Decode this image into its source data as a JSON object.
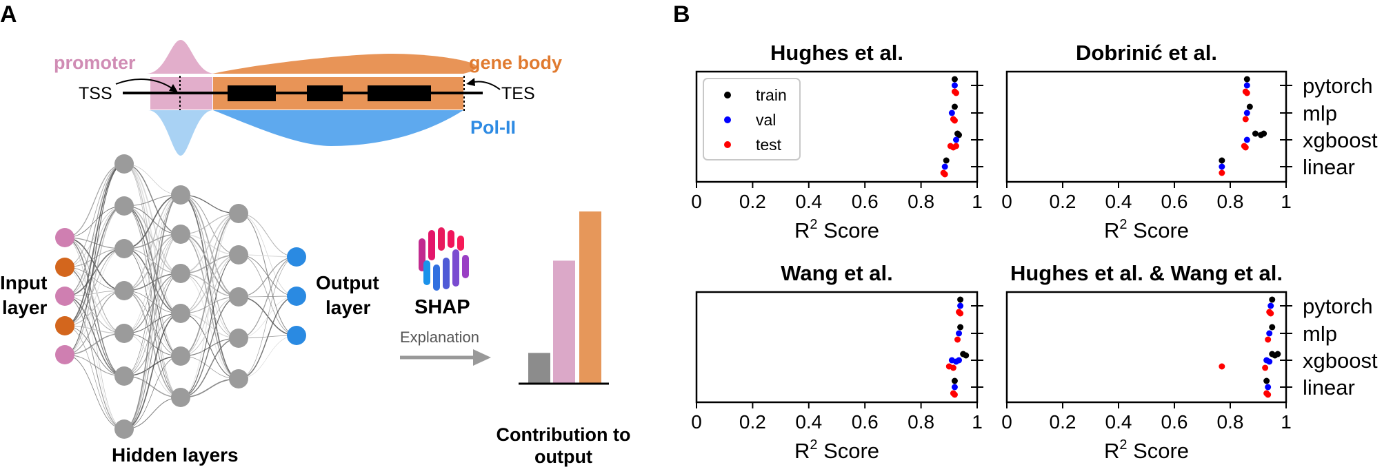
{
  "panel_a": {
    "label": "A",
    "schematic": {
      "promoter": "promoter",
      "gene_body": "gene body",
      "tss": "TSS",
      "tes": "TES",
      "pol2": "Pol-II",
      "colors": {
        "promoter": "#d08cb4",
        "promoter_light": "#e2aecb",
        "gene_body": "#e89457",
        "pol2": "#2e8be3",
        "pol2_light": "#a9d2f4"
      }
    },
    "network": {
      "input_label": "Input layer",
      "input_label_line1": "Input",
      "input_label_line2": "layer",
      "output_label_line1": "Output",
      "output_label_line2": "layer",
      "hidden_label": "Hidden layers",
      "input_colors": [
        "#cf7fb1",
        "#d3661d",
        "#cf7fb1",
        "#d3661d",
        "#cf7fb1"
      ],
      "hidden_color": "#9b9b9b",
      "output_color": "#2a8ae2"
    },
    "shap": {
      "logo_text": "SHAP",
      "arrow_label": "Explanation",
      "contribution_line1": "Contribution to",
      "contribution_line2": "output",
      "contribution_values": [
        0.25,
        1.0,
        1.4
      ],
      "contribution_colors": [
        "#8c8c8c",
        "#dba8c8",
        "#e6975a"
      ]
    }
  },
  "panel_b": {
    "label": "B"
  },
  "chart_data": [
    {
      "type": "scatter",
      "title": "Hughes et al.",
      "xlabel": "R² Score",
      "xlim": [
        0,
        1
      ],
      "xticks": [
        "0",
        "0.2",
        "0.4",
        "0.6",
        "0.8",
        "1"
      ],
      "categories": [
        "pytorch",
        "mlp",
        "xgboost",
        "linear"
      ],
      "show_legend": true,
      "show_category_labels": false,
      "legend": [
        "train",
        "val",
        "test"
      ],
      "series": [
        {
          "name": "train",
          "color": "#000000",
          "points": {
            "pytorch": [
              0.92
            ],
            "mlp": [
              0.92
            ],
            "xgboost": [
              0.93,
              0.935
            ],
            "linear": [
              0.89
            ]
          }
        },
        {
          "name": "val",
          "color": "#0000ff",
          "points": {
            "pytorch": [
              0.92
            ],
            "mlp": [
              0.91
            ],
            "xgboost": [
              0.925
            ],
            "linear": [
              0.885
            ]
          }
        },
        {
          "name": "test",
          "color": "#ff0000",
          "points": {
            "pytorch": [
              0.92,
              0.925
            ],
            "mlp": [
              0.915,
              0.92
            ],
            "xgboost": [
              0.905,
              0.915,
              0.925
            ],
            "linear": [
              0.88,
              0.885
            ]
          }
        }
      ]
    },
    {
      "type": "scatter",
      "title": "Dobrinić et al.",
      "xlabel": "R² Score",
      "xlim": [
        0,
        1
      ],
      "xticks": [
        "0",
        "0.2",
        "0.4",
        "0.6",
        "0.8",
        "1"
      ],
      "categories": [
        "pytorch",
        "mlp",
        "xgboost",
        "linear"
      ],
      "show_legend": false,
      "show_category_labels": true,
      "series": [
        {
          "name": "train",
          "color": "#000000",
          "points": {
            "pytorch": [
              0.86
            ],
            "mlp": [
              0.87
            ],
            "xgboost": [
              0.89,
              0.91,
              0.92
            ],
            "linear": [
              0.77
            ]
          }
        },
        {
          "name": "val",
          "color": "#0000ff",
          "points": {
            "pytorch": [
              0.86
            ],
            "mlp": [
              0.86
            ],
            "xgboost": [
              0.86
            ],
            "linear": [
              0.77
            ]
          }
        },
        {
          "name": "test",
          "color": "#ff0000",
          "points": {
            "pytorch": [
              0.855,
              0.86
            ],
            "mlp": [
              0.855
            ],
            "xgboost": [
              0.85,
              0.855
            ],
            "linear": [
              0.77
            ]
          }
        }
      ]
    },
    {
      "type": "scatter",
      "title": "Wang et al.",
      "xlabel": "R² Score",
      "xlim": [
        0,
        1
      ],
      "xticks": [
        "0",
        "0.2",
        "0.4",
        "0.6",
        "0.8",
        "1"
      ],
      "categories": [
        "pytorch",
        "mlp",
        "xgboost",
        "linear"
      ],
      "show_legend": false,
      "show_category_labels": false,
      "series": [
        {
          "name": "train",
          "color": "#000000",
          "points": {
            "pytorch": [
              0.94
            ],
            "mlp": [
              0.94
            ],
            "xgboost": [
              0.95,
              0.96
            ],
            "linear": [
              0.92
            ]
          }
        },
        {
          "name": "val",
          "color": "#0000ff",
          "points": {
            "pytorch": [
              0.94
            ],
            "mlp": [
              0.935
            ],
            "xgboost": [
              0.91,
              0.925,
              0.935
            ],
            "linear": [
              0.92
            ]
          }
        },
        {
          "name": "test",
          "color": "#ff0000",
          "points": {
            "pytorch": [
              0.935,
              0.94
            ],
            "mlp": [
              0.93
            ],
            "xgboost": [
              0.9,
              0.915
            ],
            "linear": [
              0.915,
              0.92
            ]
          }
        }
      ]
    },
    {
      "type": "scatter",
      "title": "Hughes et al. & Wang et al.",
      "xlabel": "R² Score",
      "xlim": [
        0,
        1
      ],
      "xticks": [
        "0",
        "0.2",
        "0.4",
        "0.6",
        "0.8",
        "1"
      ],
      "categories": [
        "pytorch",
        "mlp",
        "xgboost",
        "linear"
      ],
      "show_legend": false,
      "show_category_labels": true,
      "series": [
        {
          "name": "train",
          "color": "#000000",
          "points": {
            "pytorch": [
              0.95
            ],
            "mlp": [
              0.95
            ],
            "xgboost": [
              0.95,
              0.96,
              0.97
            ],
            "linear": [
              0.93
            ]
          }
        },
        {
          "name": "val",
          "color": "#0000ff",
          "points": {
            "pytorch": [
              0.945
            ],
            "mlp": [
              0.94
            ],
            "xgboost": [
              0.93,
              0.94
            ],
            "linear": [
              0.935
            ]
          }
        },
        {
          "name": "test",
          "color": "#ff0000",
          "points": {
            "pytorch": [
              0.94,
              0.945
            ],
            "mlp": [
              0.935
            ],
            "xgboost": [
              0.77,
              0.925
            ],
            "linear": [
              0.93,
              0.935
            ]
          }
        }
      ]
    }
  ]
}
